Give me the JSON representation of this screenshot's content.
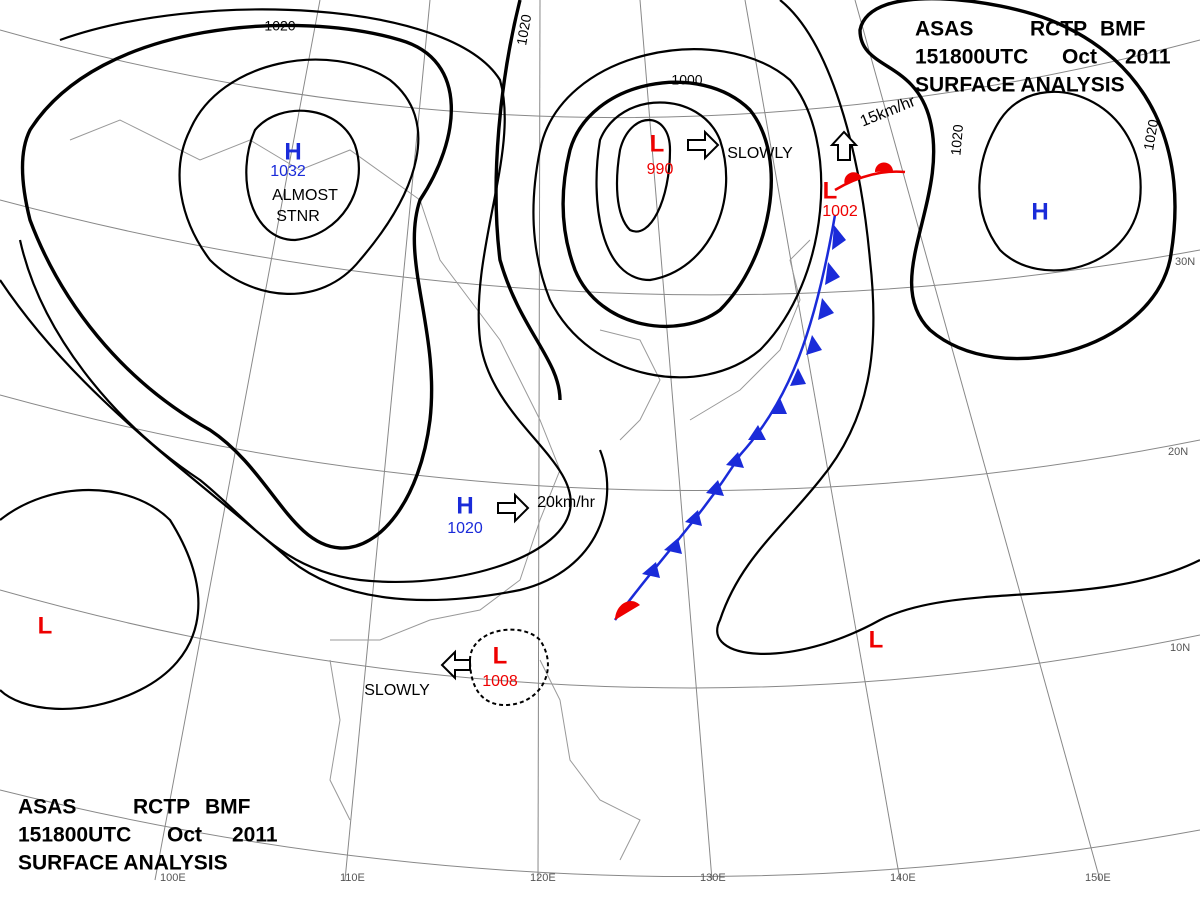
{
  "header": {
    "agency": "ASAS",
    "station": "RCTP",
    "office": "BMF",
    "time": "151800UTC",
    "month": "Oct",
    "year": "2011",
    "product": "SURFACE ANALYSIS"
  },
  "centers": [
    {
      "type": "H",
      "pressure": "1032",
      "note": [
        "ALMOST",
        "STNR"
      ]
    },
    {
      "type": "H",
      "pressure": "1020"
    },
    {
      "type": "L",
      "pressure": "990"
    },
    {
      "type": "L",
      "pressure": "1002"
    },
    {
      "type": "L",
      "pressure": "1008"
    },
    {
      "type": "L"
    },
    {
      "type": "L"
    },
    {
      "type": "H"
    }
  ],
  "isobars": [
    "1020",
    "1020",
    "1000",
    "1020",
    "1020"
  ],
  "motions": [
    "SLOWLY",
    "20km/hr",
    "15km/hr",
    "SLOWLY"
  ],
  "grid_labels": {
    "lat": [
      "30N",
      "20N",
      "10N"
    ],
    "lon": [
      "100E",
      "110E",
      "120E",
      "130E",
      "140E",
      "150E"
    ]
  }
}
